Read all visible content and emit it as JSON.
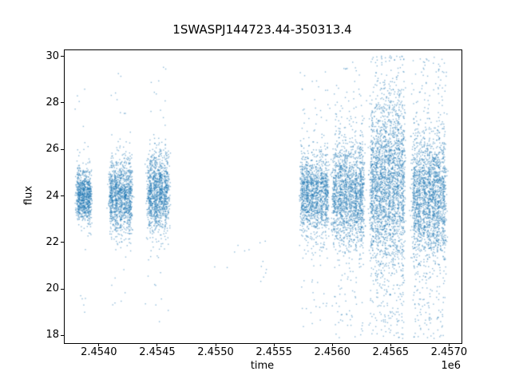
{
  "figure": {
    "title": "1SWASPJ144723.44-350313.4",
    "xlabel": "time",
    "ylabel": "flux",
    "offset_text": "1e6",
    "background": "#ffffff"
  },
  "chart_data": {
    "type": "scatter",
    "title": "1SWASPJ144723.44-350313.4",
    "xlabel": "time",
    "ylabel": "flux",
    "x_offset_factor": "1e6",
    "xlim": [
      2453700,
      2457100
    ],
    "ylim": [
      17.7,
      30.3
    ],
    "x_ticks": [
      2454000,
      2454500,
      2455000,
      2455500,
      2456000,
      2456500,
      2457000
    ],
    "x_tick_labels": [
      "2.4540",
      "2.4545",
      "2.4550",
      "2.4555",
      "2.4560",
      "2.4565",
      "2.4570"
    ],
    "y_ticks": [
      18,
      20,
      22,
      24,
      26,
      28,
      30
    ],
    "y_tick_labels": [
      "18",
      "20",
      "22",
      "24",
      "26",
      "28",
      "30"
    ],
    "grid": false,
    "legend": null,
    "marker_color": "#1f77b4",
    "marker_alpha": 0.5,
    "marker_size": 1.4,
    "seed": 42,
    "clusters": [
      {
        "center": 2453865,
        "half_width": 62,
        "n": 900,
        "columns": 3,
        "flux_mean": 24.0,
        "flux_std": 0.55,
        "tail_min": 18.3,
        "tail_max": 29.6,
        "tail_frac": 0.025
      },
      {
        "center": 2454180,
        "half_width": 100,
        "n": 1300,
        "columns": 5,
        "flux_mean": 24.0,
        "flux_std": 0.75,
        "tail_min": 18.9,
        "tail_max": 29.3,
        "tail_frac": 0.03
      },
      {
        "center": 2454500,
        "half_width": 90,
        "n": 1300,
        "columns": 4,
        "flux_mean": 24.2,
        "flux_std": 0.85,
        "tail_min": 18.3,
        "tail_max": 29.7,
        "tail_frac": 0.035
      },
      {
        "center": 2455200,
        "half_width": 260,
        "n": 14,
        "columns": 0,
        "flux_mean": 21.2,
        "flux_std": 0.0,
        "tail_min": 20.3,
        "tail_max": 22.1,
        "tail_frac": 1.0
      },
      {
        "center": 2455840,
        "half_width": 120,
        "n": 1500,
        "columns": 6,
        "flux_mean": 24.1,
        "flux_std": 0.9,
        "tail_min": 18.4,
        "tail_max": 29.4,
        "tail_frac": 0.05
      },
      {
        "center": 2456130,
        "half_width": 135,
        "n": 1900,
        "columns": 6,
        "flux_mean": 24.1,
        "flux_std": 1.15,
        "tail_min": 17.9,
        "tail_max": 29.8,
        "tail_frac": 0.09
      },
      {
        "center": 2456465,
        "half_width": 148,
        "n": 2700,
        "columns": 8,
        "flux_mean": 24.5,
        "flux_std": 1.7,
        "tail_min": 17.9,
        "tail_max": 30.1,
        "tail_frac": 0.22
      },
      {
        "center": 2456822,
        "half_width": 145,
        "n": 2300,
        "columns": 7,
        "flux_mean": 24.0,
        "flux_std": 1.35,
        "tail_min": 17.9,
        "tail_max": 30.0,
        "tail_frac": 0.16
      }
    ]
  }
}
